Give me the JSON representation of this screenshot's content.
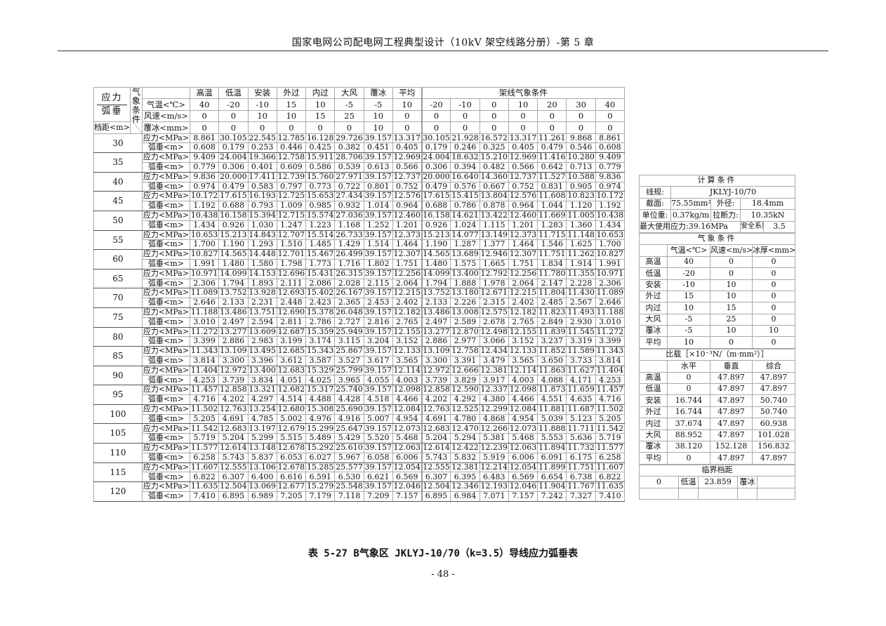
{
  "header": {
    "title": "国家电网公司配电网工程典型设计（10kV 架空线路分册）-第 5 章"
  },
  "main_table": {
    "corner_top": "应力",
    "corner_bottom": "弧垂",
    "span_label": "档距<m>",
    "cond_label": "气象条件",
    "conditions": [
      "高温",
      "低温",
      "安装",
      "外过",
      "内过",
      "大风",
      "覆冰",
      "平均"
    ],
    "erection_label": "架线气象条件",
    "temp_label": "气温<℃>",
    "wind_label": "风速<m/s>",
    "ice_label": "覆冰<mm>",
    "temps": [
      "40",
      "-20",
      "-10",
      "15",
      "10",
      "-5",
      "-5",
      "10",
      "-20",
      "-10",
      "0",
      "10",
      "20",
      "30",
      "40"
    ],
    "winds": [
      "0",
      "0",
      "10",
      "10",
      "15",
      "25",
      "10",
      "0",
      "0",
      "0",
      "0",
      "0",
      "0",
      "0",
      "0"
    ],
    "ices": [
      "0",
      "0",
      "0",
      "0",
      "0",
      "0",
      "10",
      "0",
      "0",
      "0",
      "0",
      "0",
      "0",
      "0",
      "0"
    ],
    "stress_label": "应力<MPa>",
    "sag_label": "弧垂<m>",
    "rows": [
      {
        "span": "30",
        "stress": [
          "8.861",
          "30.105",
          "22.545",
          "12.785",
          "16.128",
          "29.726",
          "39.157",
          "13.317",
          "30.105",
          "21.928",
          "16.572",
          "13.317",
          "11.261",
          "9.868",
          "8.861"
        ],
        "sag": [
          "0.608",
          "0.179",
          "0.253",
          "0.446",
          "0.425",
          "0.382",
          "0.451",
          "0.405",
          "0.179",
          "0.246",
          "0.325",
          "0.405",
          "0.479",
          "0.546",
          "0.608"
        ]
      },
      {
        "span": "35",
        "stress": [
          "9.409",
          "24.004",
          "19.366",
          "12.758",
          "15.911",
          "28.706",
          "39.157",
          "12.969",
          "24.004",
          "18.632",
          "15.210",
          "12.969",
          "11.416",
          "10.280",
          "9.409"
        ],
        "sag": [
          "0.779",
          "0.306",
          "0.401",
          "0.609",
          "0.586",
          "0.539",
          "0.613",
          "0.566",
          "0.306",
          "0.394",
          "0.482",
          "0.566",
          "0.642",
          "0.713",
          "0.779"
        ]
      },
      {
        "span": "40",
        "stress": [
          "9.836",
          "20.000",
          "17.411",
          "12.739",
          "15.760",
          "27.971",
          "39.157",
          "12.737",
          "20.000",
          "16.640",
          "14.360",
          "12.737",
          "11.527",
          "10.588",
          "9.836"
        ],
        "sag": [
          "0.974",
          "0.479",
          "0.583",
          "0.797",
          "0.773",
          "0.722",
          "0.801",
          "0.752",
          "0.479",
          "0.576",
          "0.667",
          "0.752",
          "0.831",
          "0.905",
          "0.974"
        ]
      },
      {
        "span": "45",
        "stress": [
          "10.172",
          "17.615",
          "16.193",
          "12.725",
          "15.653",
          "27.434",
          "39.157",
          "12.576",
          "17.615",
          "15.415",
          "13.804",
          "12.576",
          "11.608",
          "10.823",
          "10.172"
        ],
        "sag": [
          "1.192",
          "0.688",
          "0.793",
          "1.009",
          "0.985",
          "0.932",
          "1.014",
          "0.964",
          "0.688",
          "0.786",
          "0.878",
          "0.964",
          "1.044",
          "1.120",
          "1.192"
        ]
      },
      {
        "span": "50",
        "stress": [
          "10.438",
          "16.158",
          "15.394",
          "12.715",
          "15.574",
          "27.036",
          "39.157",
          "12.460",
          "16.158",
          "14.621",
          "13.422",
          "12.460",
          "11.669",
          "11.005",
          "10.438"
        ],
        "sag": [
          "1.434",
          "0.926",
          "1.030",
          "1.247",
          "1.223",
          "1.168",
          "1.252",
          "1.201",
          "0.926",
          "1.024",
          "1.115",
          "1.201",
          "1.283",
          "1.360",
          "1.434"
        ]
      },
      {
        "span": "55",
        "stress": [
          "10.653",
          "15.213",
          "14.843",
          "12.707",
          "15.514",
          "26.733",
          "39.157",
          "12.373",
          "15.213",
          "14.077",
          "13.149",
          "12.373",
          "11.715",
          "11.148",
          "10.653"
        ],
        "sag": [
          "1.700",
          "1.190",
          "1.293",
          "1.510",
          "1.485",
          "1.429",
          "1.514",
          "1.464",
          "1.190",
          "1.287",
          "1.377",
          "1.464",
          "1.546",
          "1.625",
          "1.700"
        ]
      },
      {
        "span": "60",
        "stress": [
          "10.827",
          "14.565",
          "14.448",
          "12.701",
          "15.467",
          "26.499",
          "39.157",
          "12.307",
          "14.565",
          "13.689",
          "12.946",
          "12.307",
          "11.751",
          "11.262",
          "10.827"
        ],
        "sag": [
          "1.991",
          "1.480",
          "1.580",
          "1.798",
          "1.773",
          "1.716",
          "1.802",
          "1.751",
          "1.480",
          "1.575",
          "1.665",
          "1.751",
          "1.834",
          "1.914",
          "1.991"
        ]
      },
      {
        "span": "65",
        "stress": [
          "10.971",
          "14.099",
          "14.153",
          "12.696",
          "15.431",
          "26.315",
          "39.157",
          "12.256",
          "14.099",
          "13.400",
          "12.792",
          "12.256",
          "11.780",
          "11.355",
          "10.971"
        ],
        "sag": [
          "2.306",
          "1.794",
          "1.893",
          "2.111",
          "2.086",
          "2.028",
          "2.115",
          "2.064",
          "1.794",
          "1.888",
          "1.978",
          "2.064",
          "2.147",
          "2.228",
          "2.306"
        ]
      },
      {
        "span": "70",
        "stress": [
          "11.089",
          "13.752",
          "13.928",
          "12.693",
          "15.402",
          "26.167",
          "39.157",
          "12.215",
          "13.752",
          "13.180",
          "12.671",
          "12.215",
          "11.804",
          "11.430",
          "11.089"
        ],
        "sag": [
          "2.646",
          "2.133",
          "2.231",
          "2.448",
          "2.423",
          "2.365",
          "2.453",
          "2.402",
          "2.133",
          "2.226",
          "2.315",
          "2.402",
          "2.485",
          "2.567",
          "2.646"
        ]
      },
      {
        "span": "75",
        "stress": [
          "11.188",
          "13.486",
          "13.751",
          "12.690",
          "15.378",
          "26.048",
          "39.157",
          "12.182",
          "13.486",
          "13.008",
          "12.575",
          "12.182",
          "11.823",
          "11.493",
          "11.188"
        ],
        "sag": [
          "3.010",
          "2.497",
          "2.594",
          "2.811",
          "2.786",
          "2.727",
          "2.816",
          "2.765",
          "2.497",
          "2.589",
          "2.678",
          "2.765",
          "2.849",
          "2.930",
          "3.010"
        ]
      },
      {
        "span": "80",
        "stress": [
          "11.272",
          "13.277",
          "13.609",
          "12.687",
          "15.359",
          "25.949",
          "39.157",
          "12.155",
          "13.277",
          "12.870",
          "12.498",
          "12.155",
          "11.839",
          "11.545",
          "11.272"
        ],
        "sag": [
          "3.399",
          "2.886",
          "2.983",
          "3.199",
          "3.174",
          "3.115",
          "3.204",
          "3.152",
          "2.886",
          "2.977",
          "3.066",
          "3.152",
          "3.237",
          "3.319",
          "3.399"
        ]
      },
      {
        "span": "85",
        "stress": [
          "11.343",
          "13.109",
          "13.495",
          "12.685",
          "15.343",
          "25.867",
          "39.157",
          "12.133",
          "13.109",
          "12.758",
          "12.434",
          "12.133",
          "11.852",
          "11.589",
          "11.343"
        ],
        "sag": [
          "3.814",
          "3.300",
          "3.396",
          "3.612",
          "3.587",
          "3.527",
          "3.617",
          "3.565",
          "3.300",
          "3.391",
          "3.479",
          "3.565",
          "3.650",
          "3.733",
          "3.814"
        ]
      },
      {
        "span": "90",
        "stress": [
          "11.404",
          "12.972",
          "13.400",
          "12.683",
          "15.329",
          "25.799",
          "39.157",
          "12.114",
          "12.972",
          "12.666",
          "12.381",
          "12.114",
          "11.863",
          "11.627",
          "11.404"
        ],
        "sag": [
          "4.253",
          "3.739",
          "3.834",
          "4.051",
          "4.025",
          "3.965",
          "4.055",
          "4.003",
          "3.739",
          "3.829",
          "3.917",
          "4.003",
          "4.088",
          "4.171",
          "4.253"
        ]
      },
      {
        "span": "95",
        "stress": [
          "11.457",
          "12.858",
          "13.321",
          "12.682",
          "15.317",
          "25.740",
          "39.157",
          "12.098",
          "12.858",
          "12.590",
          "12.337",
          "12.098",
          "11.873",
          "11.659",
          "11.457"
        ],
        "sag": [
          "4.716",
          "4.202",
          "4.297",
          "4.514",
          "4.488",
          "4.428",
          "4.518",
          "4.466",
          "4.202",
          "4.292",
          "4.380",
          "4.466",
          "4.551",
          "4.635",
          "4.716"
        ]
      },
      {
        "span": "100",
        "stress": [
          "11.502",
          "12.763",
          "13.254",
          "12.680",
          "15.308",
          "25.690",
          "39.157",
          "12.084",
          "12.763",
          "12.525",
          "12.299",
          "12.084",
          "11.881",
          "11.687",
          "11.502"
        ],
        "sag": [
          "5.205",
          "4.691",
          "4.785",
          "5.002",
          "4.976",
          "4.916",
          "5.007",
          "4.954",
          "4.691",
          "4.780",
          "4.868",
          "4.954",
          "5.039",
          "5.123",
          "5.205"
        ]
      },
      {
        "span": "105",
        "stress": [
          "11.542",
          "12.683",
          "13.197",
          "12.679",
          "15.299",
          "25.647",
          "39.157",
          "12.073",
          "12.683",
          "12.470",
          "12.266",
          "12.073",
          "11.888",
          "11.711",
          "11.542"
        ],
        "sag": [
          "5.719",
          "5.204",
          "5.299",
          "5.515",
          "5.489",
          "5.429",
          "5.520",
          "5.468",
          "5.204",
          "5.294",
          "5.381",
          "5.468",
          "5.553",
          "5.636",
          "5.719"
        ]
      },
      {
        "span": "110",
        "stress": [
          "11.577",
          "12.614",
          "13.148",
          "12.678",
          "15.292",
          "25.610",
          "39.157",
          "12.063",
          "12.614",
          "12.422",
          "12.239",
          "12.063",
          "11.894",
          "11.732",
          "11.577"
        ],
        "sag": [
          "6.258",
          "5.743",
          "5.837",
          "6.053",
          "6.027",
          "5.967",
          "6.058",
          "6.006",
          "5.743",
          "5.832",
          "5.919",
          "6.006",
          "6.091",
          "6.175",
          "6.258"
        ]
      },
      {
        "span": "115",
        "stress": [
          "11.607",
          "12.555",
          "13.106",
          "12.678",
          "15.285",
          "25.577",
          "39.157",
          "12.054",
          "12.555",
          "12.381",
          "12.214",
          "12.054",
          "11.899",
          "11.751",
          "11.607"
        ],
        "sag": [
          "6.822",
          "6.307",
          "6.400",
          "6.616",
          "6.591",
          "6.530",
          "6.621",
          "6.569",
          "6.307",
          "6.395",
          "6.483",
          "6.569",
          "6.654",
          "6.738",
          "6.822"
        ]
      },
      {
        "span": "120",
        "stress": [
          "11.635",
          "12.504",
          "13.069",
          "12.677",
          "15.279",
          "25.548",
          "39.157",
          "12.046",
          "12.504",
          "12.346",
          "12.193",
          "12.046",
          "11.904",
          "11.767",
          "11.635"
        ],
        "sag": [
          "7.410",
          "6.895",
          "6.989",
          "7.205",
          "7.179",
          "7.118",
          "7.209",
          "7.157",
          "6.895",
          "6.984",
          "7.071",
          "7.157",
          "7.242",
          "7.327",
          "7.410"
        ]
      }
    ]
  },
  "side": {
    "calc_title": "计算条件",
    "conductor_label": "线规:",
    "conductor": "JKLYJ-10/70",
    "area_label": "截面:",
    "area": "75.55mm²",
    "diameter_label": "外径:",
    "diameter": "18.4mm",
    "weight_label": "单位重:",
    "weight": "0.37kg/m",
    "breaking_label": "拉断力:",
    "breaking": "10.35kN",
    "max_stress": "最大使用应力:39.16MPa",
    "safety_label": "安全系数:",
    "safety": "3.5",
    "weather_title": "气象条件",
    "weather_headers": [
      "气温<℃>",
      "风速<m/s>",
      "冰厚<mm>"
    ],
    "weather_rows": [
      [
        "高温",
        "40",
        "0",
        "0"
      ],
      [
        "低温",
        "-20",
        "0",
        "0"
      ],
      [
        "安装",
        "-10",
        "10",
        "0"
      ],
      [
        "外过",
        "15",
        "10",
        "0"
      ],
      [
        "内过",
        "10",
        "15",
        "0"
      ],
      [
        "大风",
        "-5",
        "25",
        "0"
      ],
      [
        "覆冰",
        "-5",
        "10",
        "10"
      ],
      [
        "平均",
        "10",
        "0",
        "0"
      ]
    ],
    "load_title": "比载［×10⁻³N/（m·mm²）］",
    "load_headers": [
      "水平",
      "垂直",
      "综合"
    ],
    "load_rows": [
      [
        "高温",
        "0",
        "47.897",
        "47.897"
      ],
      [
        "低温",
        "0",
        "47.897",
        "47.897"
      ],
      [
        "安装",
        "16.744",
        "47.897",
        "50.740"
      ],
      [
        "外过",
        "16.744",
        "47.897",
        "50.740"
      ],
      [
        "内过",
        "37.674",
        "47.897",
        "60.938"
      ],
      [
        "大风",
        "88.952",
        "47.897",
        "101.028"
      ],
      [
        "覆冰",
        "38.120",
        "152.128",
        "156.832"
      ],
      [
        "平均",
        "0",
        "47.897",
        "47.897"
      ]
    ],
    "critical_title": "临界档距",
    "critical": [
      "0",
      "低温",
      "23.859",
      "覆冰",
      ""
    ]
  },
  "caption": "表 5-27 B气象区 JKLYJ-10/70（k=3.5）导线应力弧垂表",
  "page_number": "- 48 -"
}
